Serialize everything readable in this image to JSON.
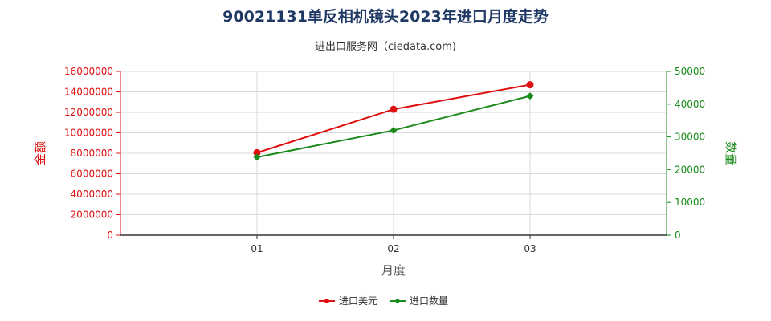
{
  "chart_data": {
    "type": "line",
    "title": "90021131单反相机镜头2023年进口月度走势",
    "subtitle": "进出口服务网（ciedata.com)",
    "xlabel": "月度",
    "ylabel_left": "金额",
    "ylabel_right": "数量",
    "categories": [
      "01",
      "02",
      "03"
    ],
    "ylim_left": [
      0,
      16000000
    ],
    "yticks_left": [
      "0",
      "2000000",
      "4000000",
      "6000000",
      "8000000",
      "10000000",
      "12000000",
      "14000000",
      "16000000"
    ],
    "ylim_right": [
      0,
      50000
    ],
    "yticks_right": [
      "0",
      "10000",
      "20000",
      "30000",
      "40000",
      "50000"
    ],
    "grid": true,
    "legend_position": "bottom",
    "series": [
      {
        "name": "进口美元",
        "axis": "left",
        "color": "#e01010",
        "marker": "circle",
        "values": [
          8050000,
          12300000,
          14700000
        ]
      },
      {
        "name": "进口数量",
        "axis": "right",
        "color": "#1a8a1a",
        "marker": "diamond",
        "values": [
          23800,
          32000,
          42500
        ]
      }
    ]
  }
}
